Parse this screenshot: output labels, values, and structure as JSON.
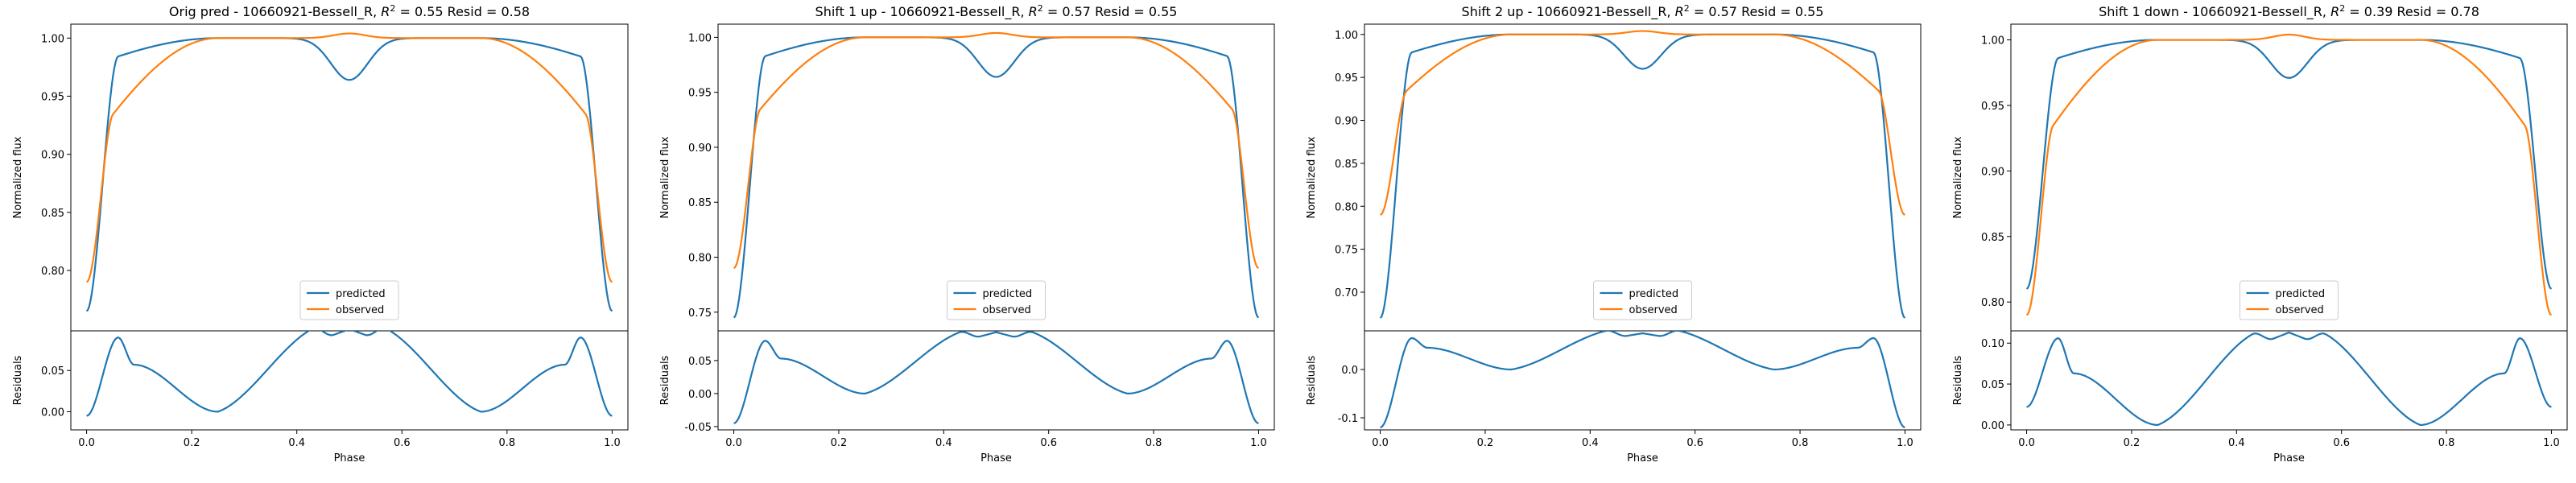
{
  "chart_data": [
    {
      "type": "line",
      "title": "Orig pred - 10660921-Bessell_R, $R^2 = 0.55$ Resid = 0.58",
      "title_parts": {
        "prefix": "Orig pred - 10660921-Bessell_R, ",
        "r2_label": "R",
        "r2_exp": "2",
        "suffix": " = 0.55 Resid = 0.58"
      },
      "xlabel": "Phase",
      "ylabel_top": "Normalized flux",
      "ylabel_bottom": "Residuals",
      "xlim": [
        -0.03,
        1.03
      ],
      "xticks": [
        "0.0",
        "0.2",
        "0.4",
        "0.6",
        "0.8",
        "1.0"
      ],
      "top_ylim": [
        0.748,
        1.012
      ],
      "top_yticks": [
        "0.80",
        "0.85",
        "0.90",
        "0.95",
        "1.00"
      ],
      "bottom_ylim": [
        -0.022,
        0.098
      ],
      "bottom_yticks": [
        "0.00",
        "0.05"
      ],
      "legend": {
        "position": "lower center",
        "entries": [
          "predicted",
          "observed"
        ]
      },
      "series": [
        {
          "name": "predicted",
          "color": "#1f77b4",
          "params": {
            "min": 0.765,
            "shoulder": 0.975,
            "dip": 0.947
          }
        },
        {
          "name": "observed",
          "color": "#ff7f0e",
          "params": {
            "end": 0.79,
            "min": 0.905
          }
        }
      ],
      "residual_params": {
        "base": -0.005,
        "edge_peak": 0.09,
        "shoulder": 0.057,
        "center": 0.043,
        "center_peak": 0.06
      }
    },
    {
      "type": "line",
      "title": "Shift 1 up - 10660921-Bessell_R, $R^2 = 0.57$ Resid = 0.55",
      "title_parts": {
        "prefix": "Shift 1 up - 10660921-Bessell_R, ",
        "r2_label": "R",
        "r2_exp": "2",
        "suffix": " = 0.57 Resid = 0.55"
      },
      "xlabel": "Phase",
      "ylabel_top": "Normalized flux",
      "ylabel_bottom": "Residuals",
      "xlim": [
        -0.03,
        1.03
      ],
      "xticks": [
        "0.0",
        "0.2",
        "0.4",
        "0.6",
        "0.8",
        "1.0"
      ],
      "top_ylim": [
        0.733,
        1.012
      ],
      "top_yticks": [
        "0.75",
        "0.80",
        "0.85",
        "0.90",
        "0.95",
        "1.00"
      ],
      "bottom_ylim": [
        -0.055,
        0.095
      ],
      "bottom_yticks": [
        "-0.05",
        "0.00",
        "0.05"
      ],
      "legend": {
        "position": "lower center",
        "entries": [
          "predicted",
          "observed"
        ]
      },
      "series": [
        {
          "name": "predicted",
          "color": "#1f77b4",
          "params": {
            "min": 0.745,
            "shoulder": 0.973,
            "dip": 0.945
          }
        },
        {
          "name": "observed",
          "color": "#ff7f0e",
          "params": {
            "end": 0.79,
            "min": 0.905
          }
        }
      ],
      "residual_params": {
        "base": -0.045,
        "edge_peak": 0.08,
        "shoulder": 0.053,
        "center": 0.04,
        "center_peak": 0.055
      }
    },
    {
      "type": "line",
      "title": "Shift 2 up - 10660921-Bessell_R, $R^2 = 0.57$ Resid = 0.55",
      "title_parts": {
        "prefix": "Shift 2 up - 10660921-Bessell_R, ",
        "r2_label": "R",
        "r2_exp": "2",
        "suffix": " = 0.57 Resid = 0.55"
      },
      "xlabel": "Phase",
      "ylabel_top": "Normalized flux",
      "ylabel_bottom": "Residuals",
      "xlim": [
        -0.03,
        1.03
      ],
      "xticks": [
        "0.0",
        "0.2",
        "0.4",
        "0.6",
        "0.8",
        "1.0"
      ],
      "top_ylim": [
        0.655,
        1.012
      ],
      "top_yticks": [
        "0.70",
        "0.75",
        "0.80",
        "0.85",
        "0.90",
        "0.95",
        "1.00"
      ],
      "bottom_ylim": [
        -0.125,
        0.08
      ],
      "bottom_yticks": [
        "-0.1",
        "0.0"
      ],
      "legend": {
        "position": "lower center",
        "entries": [
          "predicted",
          "observed"
        ]
      },
      "series": [
        {
          "name": "predicted",
          "color": "#1f77b4",
          "params": {
            "min": 0.67,
            "shoulder": 0.967,
            "dip": 0.935
          }
        },
        {
          "name": "observed",
          "color": "#ff7f0e",
          "params": {
            "end": 0.79,
            "min": 0.905
          }
        }
      ],
      "residual_params": {
        "base": -0.12,
        "edge_peak": 0.065,
        "shoulder": 0.045,
        "center": 0.03,
        "center_peak": 0.048
      }
    },
    {
      "type": "line",
      "title": "Shift 1 down - 10660921-Bessell_R, $R^2 = 0.39$ Resid = 0.78",
      "title_parts": {
        "prefix": "Shift 1 down - 10660921-Bessell_R, ",
        "r2_label": "R",
        "r2_exp": "2",
        "suffix": " = 0.39 Resid = 0.78"
      },
      "xlabel": "Phase",
      "ylabel_top": "Normalized flux",
      "ylabel_bottom": "Residuals",
      "xlim": [
        -0.03,
        1.03
      ],
      "xticks": [
        "0.0",
        "0.2",
        "0.4",
        "0.6",
        "0.8",
        "1.0"
      ],
      "top_ylim": [
        0.778,
        1.012
      ],
      "top_yticks": [
        "0.80",
        "0.85",
        "0.90",
        "0.95",
        "1.00"
      ],
      "bottom_ylim": [
        -0.006,
        0.115
      ],
      "bottom_yticks": [
        "0.00",
        "0.05",
        "0.10"
      ],
      "legend": {
        "position": "lower center",
        "entries": [
          "predicted",
          "observed"
        ]
      },
      "series": [
        {
          "name": "predicted",
          "color": "#1f77b4",
          "params": {
            "min": 0.81,
            "shoulder": 0.978,
            "dip": 0.957
          }
        },
        {
          "name": "observed",
          "color": "#ff7f0e",
          "params": {
            "end": 0.79,
            "min": 0.905
          }
        }
      ],
      "residual_params": {
        "base": 0.022,
        "edge_peak": 0.106,
        "shoulder": 0.063,
        "center": 0.05,
        "center_peak": 0.066
      }
    }
  ]
}
